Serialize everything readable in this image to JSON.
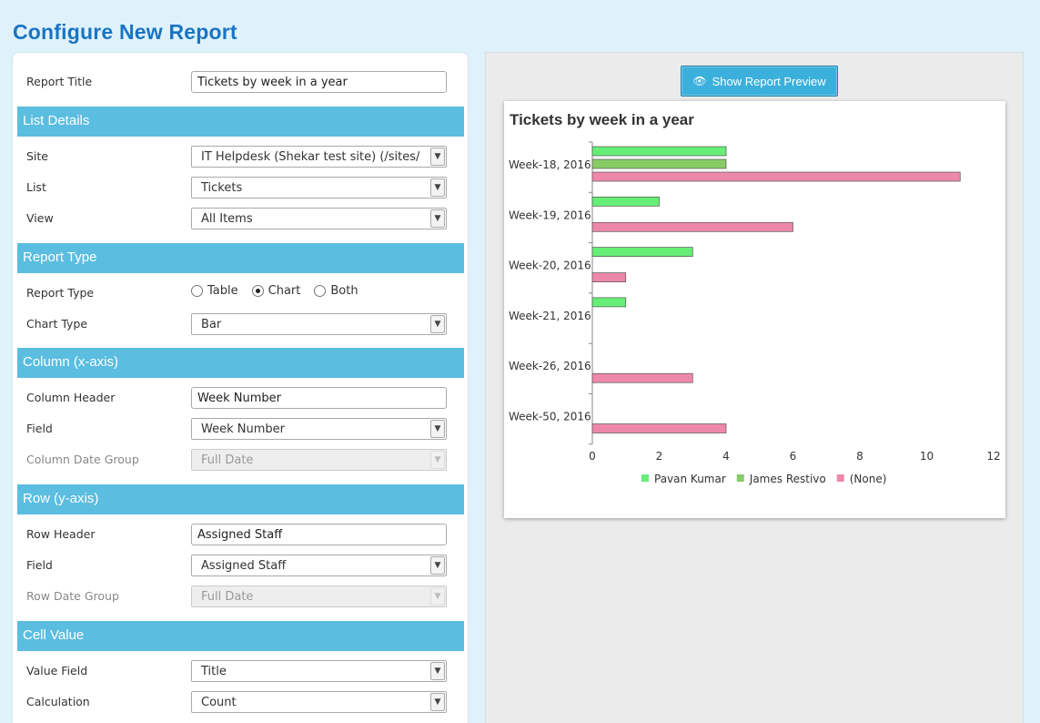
{
  "page": {
    "title": "Configure New Report"
  },
  "form": {
    "report_title": {
      "label": "Report Title",
      "value": "Tickets by week in a year"
    },
    "sections": {
      "list_details": "List Details",
      "report_type": "Report Type",
      "column": "Column (x-axis)",
      "row": "Row (y-axis)",
      "cell_value": "Cell Value"
    },
    "site": {
      "label": "Site",
      "value": "IT Helpdesk (Shekar test site) (/sites/dem"
    },
    "list": {
      "label": "List",
      "value": "Tickets"
    },
    "view": {
      "label": "View",
      "value": "All Items"
    },
    "report_type": {
      "label": "Report Type",
      "options": [
        "Table",
        "Chart",
        "Both"
      ],
      "selected": "Chart"
    },
    "chart_type": {
      "label": "Chart Type",
      "value": "Bar"
    },
    "column_header": {
      "label": "Column Header",
      "value": "Week Number"
    },
    "column_field": {
      "label": "Field",
      "value": "Week Number"
    },
    "column_date_group": {
      "label": "Column Date Group",
      "value": "Full Date"
    },
    "row_header": {
      "label": "Row Header",
      "value": "Assigned Staff"
    },
    "row_field": {
      "label": "Field",
      "value": "Assigned Staff"
    },
    "row_date_group": {
      "label": "Row Date Group",
      "value": "Full Date"
    },
    "value_field": {
      "label": "Value Field",
      "value": "Title"
    },
    "calculation": {
      "label": "Calculation",
      "value": "Count"
    }
  },
  "preview": {
    "button_label": "Show Report Preview",
    "button_icon": "eye-icon"
  },
  "chart_data": {
    "type": "bar",
    "orientation": "horizontal",
    "title": "Tickets by week in a year",
    "categories": [
      "Week-18, 2016",
      "Week-19, 2016",
      "Week-20, 2016",
      "Week-21, 2016",
      "Week-26, 2016",
      "Week-50, 2016"
    ],
    "series": [
      {
        "name": "Pavan Kumar",
        "color": "#66ee77",
        "values": [
          4,
          2,
          3,
          1,
          0,
          0
        ]
      },
      {
        "name": "James Restivo",
        "color": "#88cc66",
        "values": [
          4,
          0,
          0,
          0,
          0,
          0
        ]
      },
      {
        "name": "(None)",
        "color": "#ee88aa",
        "values": [
          11,
          6,
          1,
          0,
          3,
          4
        ]
      }
    ],
    "xticks": [
      0,
      2,
      4,
      6,
      8,
      10,
      12
    ],
    "xlim": [
      0,
      12
    ],
    "legend": "bottom-center",
    "grid": false
  }
}
